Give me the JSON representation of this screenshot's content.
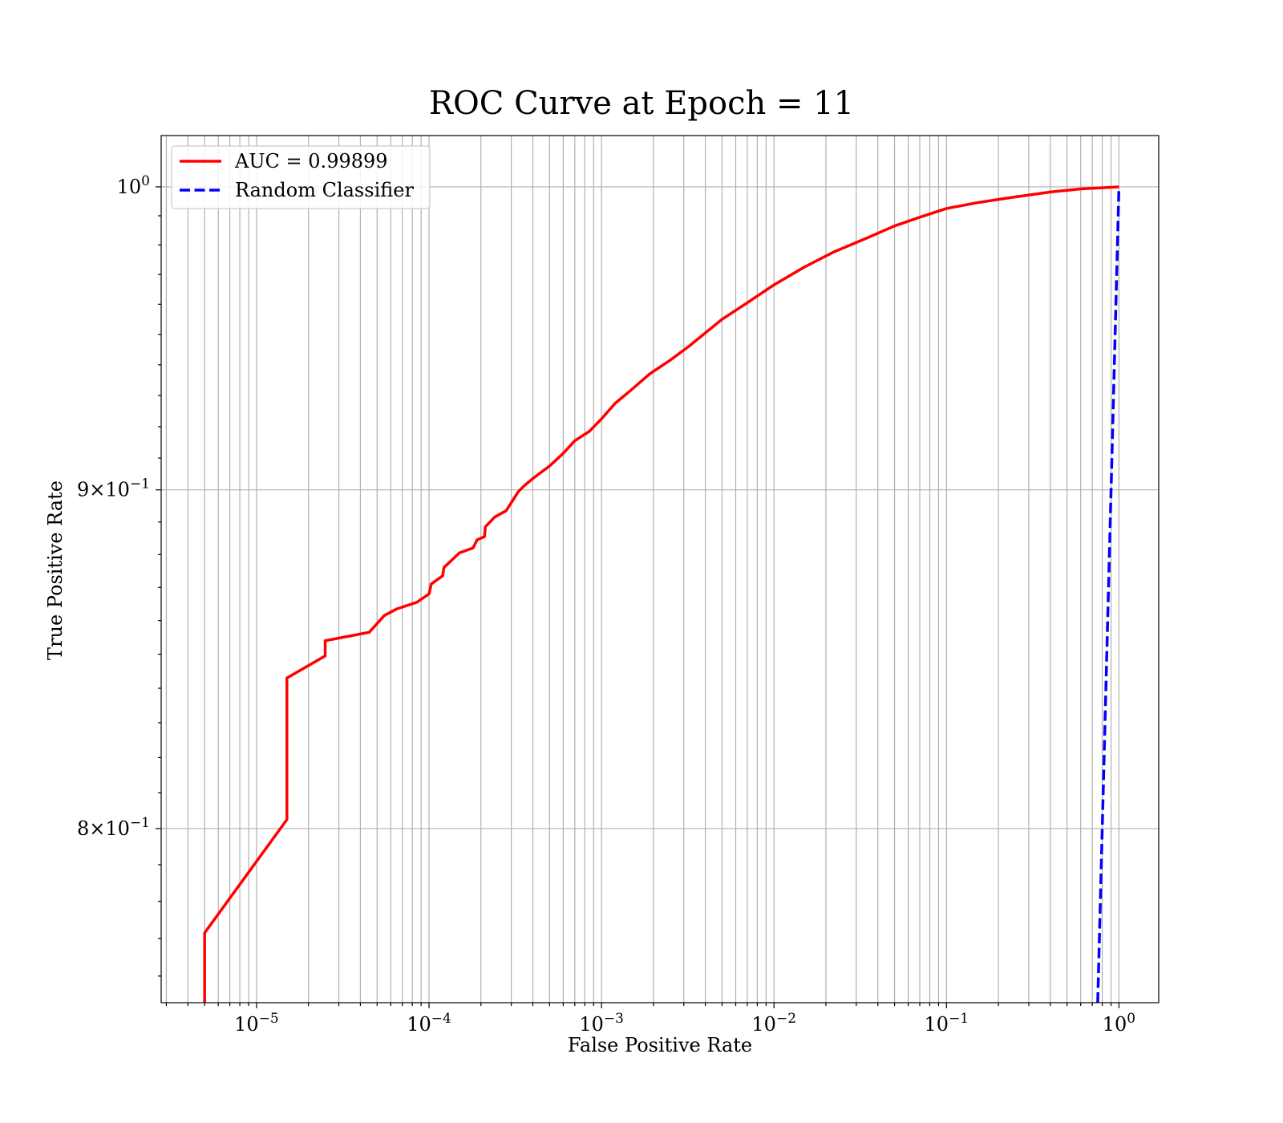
{
  "chart_data": {
    "type": "line",
    "title": "ROC Curve at Epoch = 11",
    "xlabel": "False Positive Rate",
    "ylabel": "True Positive Rate",
    "xscale": "log",
    "yscale": "log",
    "xlim": [
      2.8e-06,
      1.7
    ],
    "ylim": [
      0.753,
      1.018
    ],
    "grid": "major and minor, both axes",
    "legend_position": "top-left",
    "x_ticks": [
      {
        "value": 1e-05,
        "base": "10",
        "exp": "−5"
      },
      {
        "value": 0.0001,
        "base": "10",
        "exp": "−4"
      },
      {
        "value": 0.001,
        "base": "10",
        "exp": "−3"
      },
      {
        "value": 0.01,
        "base": "10",
        "exp": "−2"
      },
      {
        "value": 0.1,
        "base": "10",
        "exp": "−1"
      },
      {
        "value": 1,
        "base": "10",
        "exp": "0"
      }
    ],
    "y_ticks": [
      {
        "value": 1.0,
        "base": "10",
        "exp": "0"
      },
      {
        "value": 0.9,
        "base": "9×10",
        "exp": "−1"
      },
      {
        "value": 0.8,
        "base": "8×10",
        "exp": "−1"
      }
    ],
    "series": [
      {
        "name": "AUC = 0.99899",
        "color": "#ff0000",
        "dash": "solid",
        "points": [
          [
            5e-06,
            0.753
          ],
          [
            5e-06,
            0.7715
          ],
          [
            1.5e-05,
            0.8025
          ],
          [
            1.5e-05,
            0.843
          ],
          [
            2.5e-05,
            0.8495
          ],
          [
            2.5e-05,
            0.854
          ],
          [
            4.5e-05,
            0.8565
          ],
          [
            5.5e-05,
            0.8615
          ],
          [
            6.5e-05,
            0.8635
          ],
          [
            8.5e-05,
            0.8655
          ],
          [
            0.0001,
            0.868
          ],
          [
            0.000103,
            0.871
          ],
          [
            0.00012,
            0.8735
          ],
          [
            0.000122,
            0.876
          ],
          [
            0.00015,
            0.8805
          ],
          [
            0.00018,
            0.882
          ],
          [
            0.00019,
            0.8845
          ],
          [
            0.00021,
            0.8855
          ],
          [
            0.000212,
            0.8885
          ],
          [
            0.00024,
            0.8915
          ],
          [
            0.00028,
            0.8935
          ],
          [
            0.00033,
            0.8995
          ],
          [
            0.00036,
            0.9015
          ],
          [
            0.00041,
            0.904
          ],
          [
            0.0005,
            0.9075
          ],
          [
            0.0006,
            0.9115
          ],
          [
            0.0007,
            0.9155
          ],
          [
            0.00085,
            0.9185
          ],
          [
            0.001,
            0.9225
          ],
          [
            0.0012,
            0.9275
          ],
          [
            0.0015,
            0.932
          ],
          [
            0.0019,
            0.937
          ],
          [
            0.0025,
            0.9415
          ],
          [
            0.0032,
            0.946
          ],
          [
            0.004,
            0.9505
          ],
          [
            0.005,
            0.955
          ],
          [
            0.007,
            0.9605
          ],
          [
            0.01,
            0.9665
          ],
          [
            0.015,
            0.9725
          ],
          [
            0.022,
            0.9775
          ],
          [
            0.035,
            0.9825
          ],
          [
            0.05,
            0.9865
          ],
          [
            0.07,
            0.9895
          ],
          [
            0.1,
            0.9925
          ],
          [
            0.15,
            0.9945
          ],
          [
            0.25,
            0.9965
          ],
          [
            0.4,
            0.9982
          ],
          [
            0.6,
            0.9993
          ],
          [
            1.0,
            1.0
          ]
        ]
      },
      {
        "name": "Random Classifier",
        "color": "#0000ff",
        "dash": "dashed",
        "points": [
          [
            0.753,
            0.753
          ],
          [
            1.0,
            1.0
          ]
        ]
      }
    ]
  }
}
